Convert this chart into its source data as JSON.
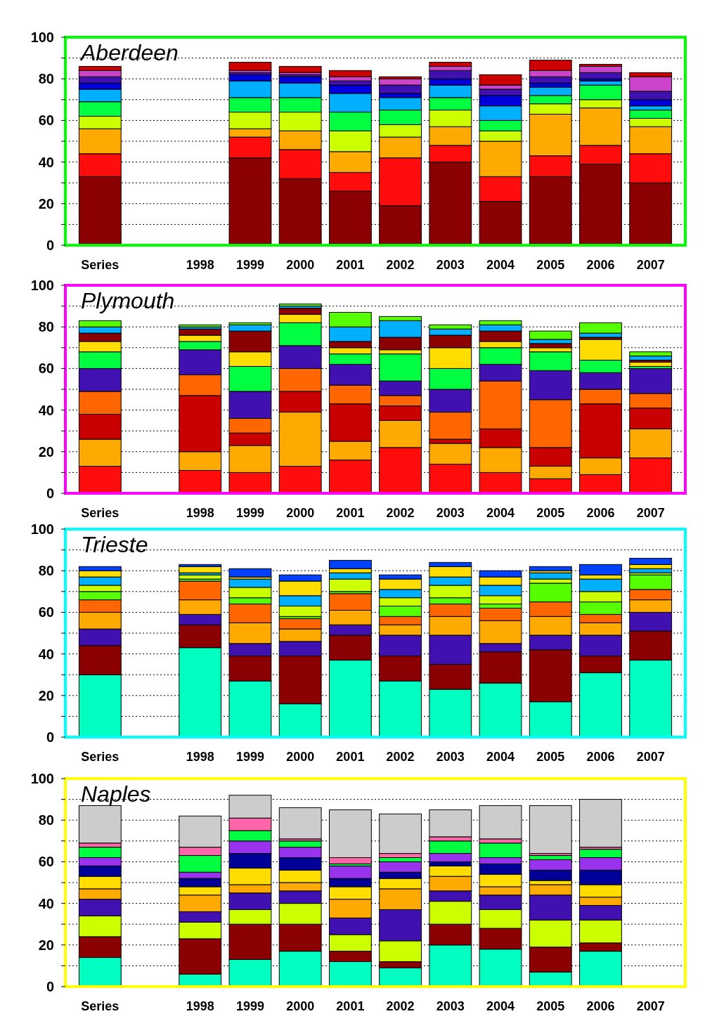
{
  "chart_data": [
    {
      "type": "bar",
      "title": "Aberdeen",
      "stacked": true,
      "grid": "y",
      "ylim": [
        0,
        100
      ],
      "yticks": [
        0,
        {
          "value": 10,
          "label": null
        },
        20,
        {
          "value": 30,
          "label": null
        },
        40,
        {
          "value": 50,
          "label": null
        },
        60,
        {
          "value": 70,
          "label": null
        },
        80,
        {
          "value": 90,
          "label": null
        },
        100
      ],
      "categories": [
        "Series",
        null,
        "1998",
        "1999",
        "2000",
        "2001",
        "2002",
        "2003",
        "2004",
        "2005",
        "2006",
        "2007"
      ],
      "series": [
        {
          "color": "#8b0000",
          "values": [
            33,
            null,
            null,
            42,
            32,
            26,
            19,
            40,
            21,
            33,
            39,
            30
          ]
        },
        {
          "color": "#ff0d0d",
          "values": [
            11,
            null,
            null,
            10,
            14,
            9,
            23,
            8,
            12,
            10,
            9,
            14
          ]
        },
        {
          "color": "#ffaa00",
          "values": [
            12,
            null,
            null,
            4,
            9,
            10,
            10,
            9,
            17,
            20,
            18,
            13
          ]
        },
        {
          "color": "#ccff00",
          "values": [
            6,
            null,
            null,
            8,
            9,
            10,
            6,
            8,
            5,
            5,
            4,
            4
          ]
        },
        {
          "color": "#00ff40",
          "values": [
            7,
            null,
            null,
            7,
            7,
            9,
            7,
            6,
            5,
            4,
            7,
            4
          ]
        },
        {
          "color": "#00b0ff",
          "values": [
            6,
            null,
            null,
            8,
            7,
            9,
            6,
            6,
            7,
            4,
            2,
            2
          ]
        },
        {
          "color": "#0000dd",
          "values": [
            3,
            null,
            null,
            3,
            3,
            4,
            2,
            3,
            5,
            2,
            1,
            3
          ]
        },
        {
          "color": "#4010b0",
          "values": [
            3,
            null,
            null,
            1,
            1,
            2,
            4,
            4,
            3,
            3,
            3,
            4
          ]
        },
        {
          "color": "#cc44cc",
          "values": [
            3,
            null,
            null,
            1,
            1,
            2,
            3,
            2,
            2,
            3,
            3,
            7
          ]
        },
        {
          "color": "#cc0000",
          "values": [
            2,
            null,
            null,
            4,
            3,
            3,
            1,
            2,
            5,
            5,
            1,
            2
          ]
        }
      ]
    },
    {
      "type": "bar",
      "title": "Plymouth",
      "stacked": true,
      "grid": "y",
      "ylim": [
        0,
        100
      ],
      "yticks": [
        0,
        {
          "value": 10,
          "label": null
        },
        20,
        {
          "value": 30,
          "label": null
        },
        40,
        {
          "value": 50,
          "label": null
        },
        60,
        {
          "value": 70,
          "label": null
        },
        80,
        {
          "value": 90,
          "label": null
        },
        100
      ],
      "categories": [
        "Series",
        null,
        "1998",
        "1999",
        "2000",
        "2001",
        "2002",
        "2003",
        "2004",
        "2005",
        "2006",
        "2007"
      ],
      "series": [
        {
          "color": "#ff0d0d",
          "values": [
            13,
            null,
            11,
            10,
            13,
            16,
            22,
            14,
            10,
            7,
            9,
            17
          ]
        },
        {
          "color": "#ffaa00",
          "values": [
            13,
            null,
            9,
            13,
            26,
            9,
            13,
            10,
            12,
            6,
            8,
            14
          ]
        },
        {
          "color": "#c80000",
          "values": [
            12,
            null,
            27,
            6,
            10,
            18,
            7,
            2,
            9,
            9,
            26,
            10
          ]
        },
        {
          "color": "#ff6600",
          "values": [
            11,
            null,
            10,
            7,
            11,
            9,
            5,
            13,
            23,
            23,
            7,
            7
          ]
        },
        {
          "color": "#4010b0",
          "values": [
            11,
            null,
            12,
            13,
            11,
            10,
            7,
            11,
            8,
            14,
            8,
            12
          ]
        },
        {
          "color": "#00ff40",
          "values": [
            8,
            null,
            4,
            12,
            11,
            5,
            13,
            10,
            8,
            9,
            6,
            1
          ]
        },
        {
          "color": "#ffdd00",
          "values": [
            5,
            null,
            3,
            7,
            4,
            3,
            2,
            10,
            3,
            2,
            10,
            2
          ]
        },
        {
          "color": "#8b0000",
          "values": [
            4,
            null,
            3,
            10,
            3,
            3,
            6,
            6,
            5,
            2,
            1,
            1
          ]
        },
        {
          "color": "#00b0ff",
          "values": [
            3,
            null,
            1,
            3,
            1,
            7,
            8,
            3,
            3,
            2,
            2,
            2
          ]
        },
        {
          "color": "#55ff00",
          "values": [
            3,
            null,
            1,
            1,
            1,
            7,
            2,
            2,
            2,
            4,
            5,
            2
          ]
        }
      ]
    },
    {
      "type": "bar",
      "title": "Trieste",
      "stacked": true,
      "grid": "y",
      "ylim": [
        0,
        100
      ],
      "yticks": [
        0,
        {
          "value": 10,
          "label": null
        },
        20,
        {
          "value": 30,
          "label": null
        },
        40,
        {
          "value": 50,
          "label": null
        },
        60,
        {
          "value": 70,
          "label": null
        },
        80,
        {
          "value": 90,
          "label": null
        },
        100
      ],
      "categories": [
        "Series",
        null,
        "1998",
        "1999",
        "2000",
        "2001",
        "2002",
        "2003",
        "2004",
        "2005",
        "2006",
        "2007"
      ],
      "series": [
        {
          "color": "#00ffc0",
          "values": [
            30,
            null,
            43,
            27,
            16,
            37,
            27,
            23,
            26,
            17,
            31,
            37
          ]
        },
        {
          "color": "#8b0000",
          "values": [
            14,
            null,
            11,
            12,
            23,
            12,
            12,
            12,
            15,
            25,
            8,
            14
          ]
        },
        {
          "color": "#4010b0",
          "values": [
            8,
            null,
            5,
            6,
            7,
            5,
            10,
            14,
            4,
            7,
            10,
            9
          ]
        },
        {
          "color": "#ffaa00",
          "values": [
            8,
            null,
            7,
            10,
            6,
            7,
            5,
            9,
            11,
            9,
            6,
            6
          ]
        },
        {
          "color": "#ff6600",
          "values": [
            6,
            null,
            9,
            9,
            5,
            8,
            4,
            6,
            6,
            7,
            4,
            5
          ]
        },
        {
          "color": "#55ff00",
          "values": [
            4,
            null,
            1,
            3,
            1,
            1,
            5,
            3,
            2,
            9,
            6,
            7
          ]
        },
        {
          "color": "#ccff00",
          "values": [
            3,
            null,
            2,
            5,
            5,
            6,
            4,
            6,
            4,
            2,
            5,
            1
          ]
        },
        {
          "color": "#00b0ff",
          "values": [
            4,
            null,
            1,
            4,
            5,
            3,
            4,
            4,
            5,
            3,
            6,
            2
          ]
        },
        {
          "color": "#ffdd00",
          "values": [
            3,
            null,
            3,
            1,
            7,
            2,
            5,
            5,
            4,
            1,
            2,
            2
          ]
        },
        {
          "color": "#0040ff",
          "values": [
            2,
            null,
            1,
            4,
            3,
            4,
            2,
            2,
            3,
            2,
            5,
            3
          ]
        }
      ]
    },
    {
      "type": "bar",
      "title": "Naples",
      "stacked": true,
      "grid": "y",
      "ylim": [
        0,
        100
      ],
      "yticks": [
        0,
        {
          "value": 10,
          "label": null
        },
        20,
        {
          "value": 30,
          "label": null
        },
        40,
        {
          "value": 50,
          "label": null
        },
        60,
        {
          "value": 70,
          "label": null
        },
        80,
        {
          "value": 90,
          "label": null
        },
        100
      ],
      "categories": [
        "Series",
        null,
        "1998",
        "1999",
        "2000",
        "2001",
        "2002",
        "2003",
        "2004",
        "2005",
        "2006",
        "2007"
      ],
      "series": [
        {
          "color": "#00ffc0",
          "values": [
            14,
            null,
            6,
            13,
            17,
            12,
            9,
            20,
            18,
            7,
            17,
            null
          ]
        },
        {
          "color": "#8b0000",
          "values": [
            10,
            null,
            17,
            17,
            13,
            5,
            3,
            10,
            10,
            12,
            4,
            null
          ]
        },
        {
          "color": "#ccff00",
          "values": [
            10,
            null,
            8,
            7,
            10,
            8,
            10,
            11,
            9,
            13,
            11,
            null
          ]
        },
        {
          "color": "#4010b0",
          "values": [
            8,
            null,
            5,
            8,
            6,
            8,
            15,
            5,
            7,
            12,
            7,
            null
          ]
        },
        {
          "color": "#ffaa00",
          "values": [
            5,
            null,
            8,
            4,
            4,
            9,
            10,
            7,
            4,
            5,
            4,
            null
          ]
        },
        {
          "color": "#ffdd00",
          "values": [
            6,
            null,
            4,
            8,
            6,
            6,
            5,
            5,
            6,
            2,
            6,
            null
          ]
        },
        {
          "color": "#000099",
          "values": [
            5,
            null,
            4,
            7,
            6,
            4,
            3,
            2,
            5,
            5,
            7,
            null
          ]
        },
        {
          "color": "#9933ee",
          "values": [
            4,
            null,
            3,
            6,
            5,
            6,
            5,
            4,
            3,
            5,
            6,
            null
          ]
        },
        {
          "color": "#00ff40",
          "values": [
            5,
            null,
            8,
            5,
            3,
            1,
            2,
            6,
            7,
            2,
            4,
            null
          ]
        },
        {
          "color": "#ff66aa",
          "values": [
            2,
            null,
            4,
            6,
            1,
            3,
            2,
            2,
            2,
            1,
            1,
            null
          ]
        },
        {
          "color": "#cccccc",
          "values": [
            18,
            null,
            15,
            11,
            15,
            23,
            19,
            13,
            16,
            23,
            23,
            null
          ]
        }
      ]
    }
  ]
}
